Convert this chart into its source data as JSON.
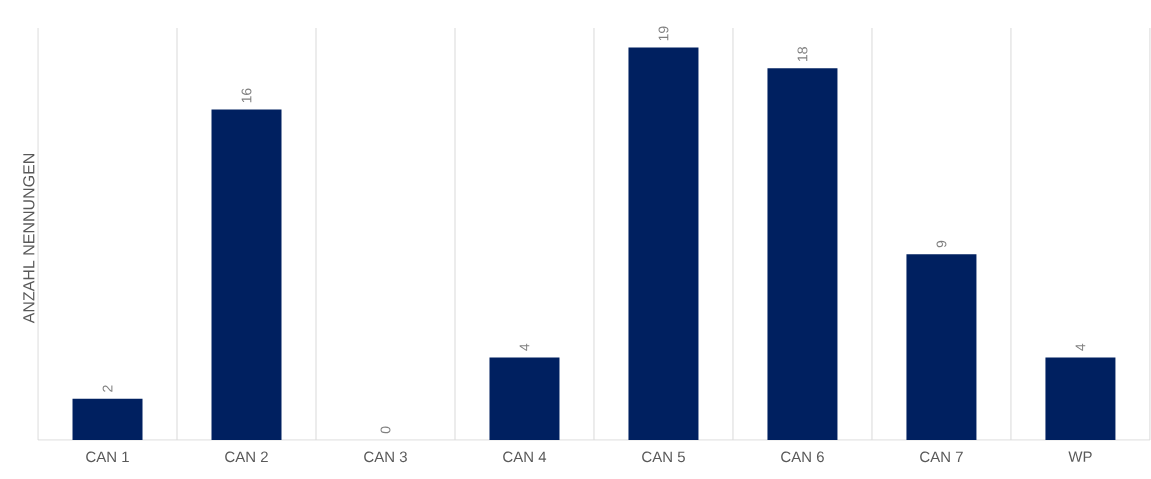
{
  "chart_data": {
    "type": "bar",
    "ylabel": "ANZAHL NENNUNGEN",
    "categories": [
      "CAN 1",
      "CAN 2",
      "CAN 3",
      "CAN 4",
      "CAN 5",
      "CAN 6",
      "CAN 7",
      "WP"
    ],
    "values": [
      2,
      16,
      0,
      4,
      19,
      18,
      9,
      4
    ],
    "color": "#002060",
    "data_labels": true,
    "grid": "x"
  }
}
